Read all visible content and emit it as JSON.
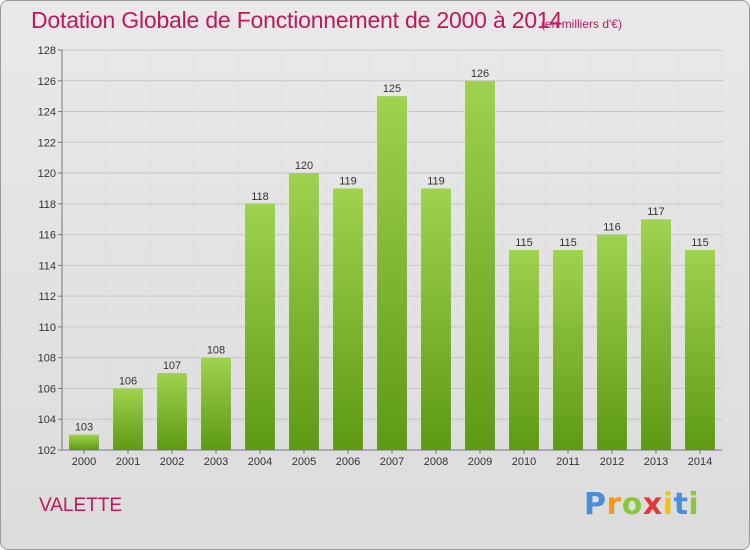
{
  "title": "Dotation Globale de Fonctionnement de 2000 à 2014",
  "subtitle": "(en milliers d'€)",
  "commune": "VALETTE",
  "brand": "Proxiti",
  "colors": {
    "title": "#c0185a",
    "bar_light": "#9fd24e",
    "bar_dark": "#5e9a14",
    "grid": "#c8c8c8"
  },
  "chart_data": {
    "type": "bar",
    "title": "Dotation Globale de Fonctionnement de 2000 à 2014",
    "subtitle": "(en milliers d'€)",
    "categories": [
      "2000",
      "2001",
      "2002",
      "2003",
      "2004",
      "2005",
      "2006",
      "2007",
      "2008",
      "2009",
      "2010",
      "2011",
      "2012",
      "2013",
      "2014"
    ],
    "values": [
      103,
      106,
      107,
      108,
      118,
      120,
      119,
      125,
      119,
      126,
      115,
      115,
      116,
      117,
      115
    ],
    "ylim": [
      102,
      128
    ],
    "yticks": [
      102,
      104,
      106,
      108,
      110,
      112,
      114,
      116,
      118,
      120,
      122,
      124,
      126,
      128
    ],
    "grid": true,
    "data_labels": true
  }
}
